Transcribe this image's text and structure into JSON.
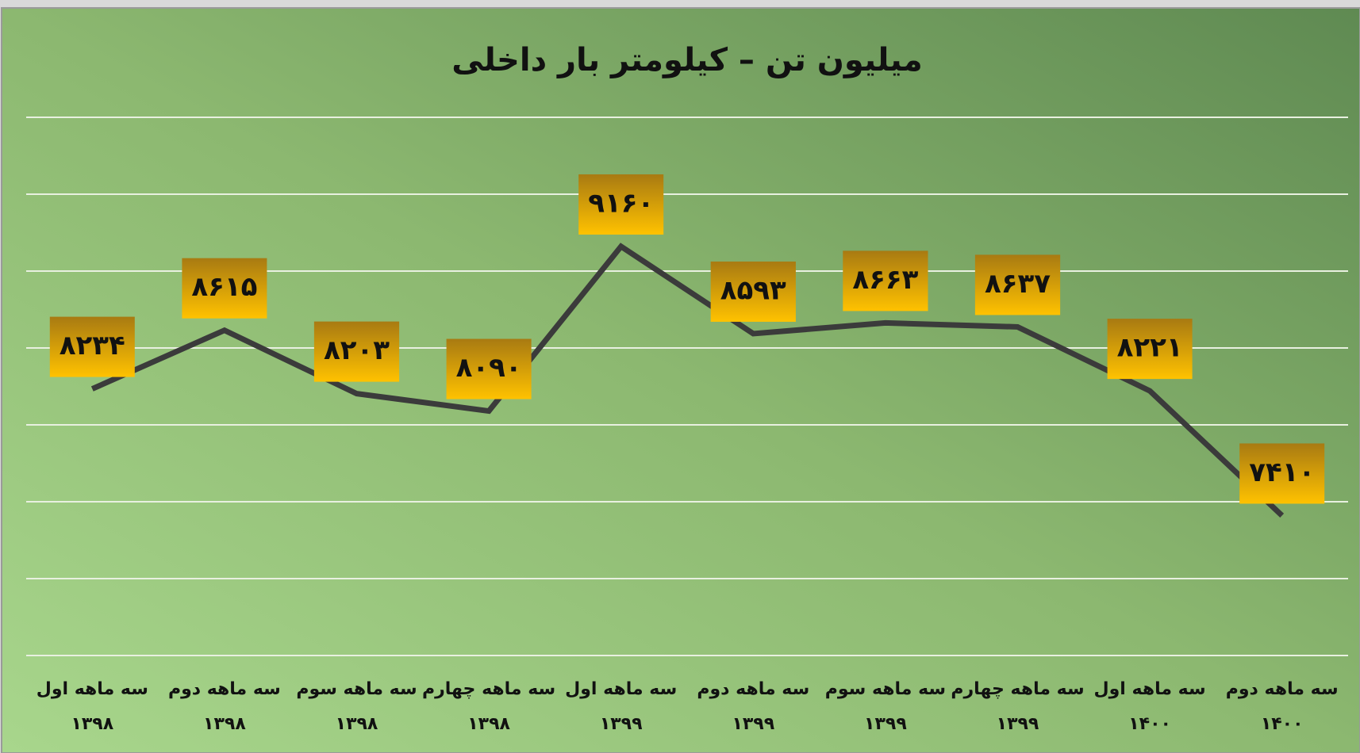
{
  "chart_data": {
    "type": "line",
    "title": "میلیون تن – کیلومتر بار داخلی",
    "categories": [
      [
        "سه ماهه اول",
        "۱۳۹۸"
      ],
      [
        "سه ماهه دوم",
        "۱۳۹۸"
      ],
      [
        "سه ماهه سوم",
        "۱۳۹۸"
      ],
      [
        "سه ماهه چهارم",
        "۱۳۹۸"
      ],
      [
        "سه ماهه اول",
        "۱۳۹۹"
      ],
      [
        "سه ماهه دوم",
        "۱۳۹۹"
      ],
      [
        "سه ماهه سوم",
        "۱۳۹۹"
      ],
      [
        "سه ماهه چهارم",
        "۱۳۹۹"
      ],
      [
        "سه ماهه اول",
        "۱۴۰۰"
      ],
      [
        "سه ماهه دوم",
        "۱۴۰۰"
      ]
    ],
    "values": [
      8234,
      8615,
      8203,
      8090,
      9160,
      8593,
      8663,
      8637,
      8221,
      7410
    ],
    "value_labels": [
      "۸۲۳۴",
      "۸۶۱۵",
      "۸۲۰۳",
      "۸۰۹۰",
      "۹۱۶۰",
      "۸۵۹۳",
      "۸۶۶۳",
      "۸۶۳۷",
      "۸۲۲۱",
      "۷۴۱۰"
    ],
    "color": "#3b3b3b",
    "ylim": [
      6500,
      10000
    ],
    "yticks": [
      6500,
      7000,
      7500,
      8000,
      8500,
      9000,
      9500,
      10000
    ],
    "grid": true
  }
}
